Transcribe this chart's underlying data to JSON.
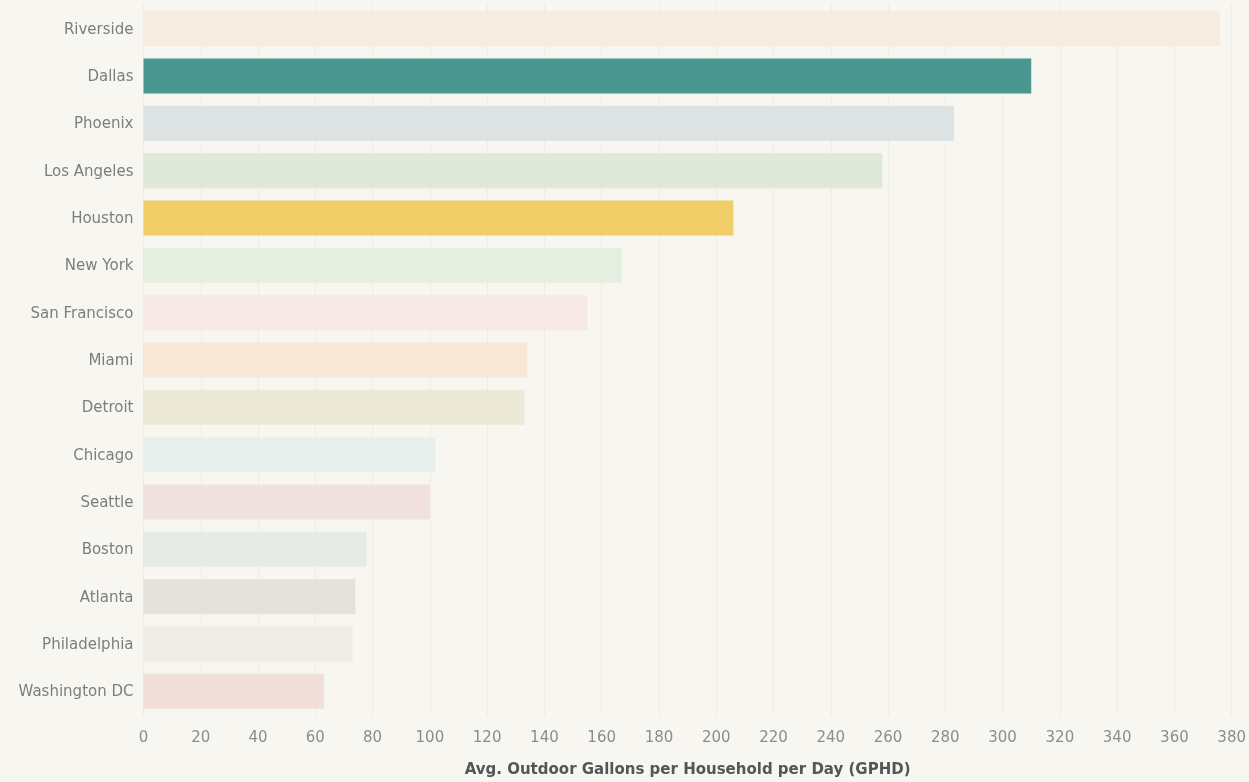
{
  "chart_data": {
    "type": "bar",
    "orientation": "horizontal",
    "xlabel": "Avg. Outdoor Gallons per Household per Day (GPHD)",
    "categories": [
      "Riverside",
      "Dallas",
      "Phoenix",
      "Los Angeles",
      "Houston",
      "New York",
      "San Francisco",
      "Miami",
      "Detroit",
      "Chicago",
      "Seattle",
      "Boston",
      "Atlanta",
      "Philadelphia",
      "Washington DC"
    ],
    "values": [
      376,
      310,
      283,
      258,
      206,
      167,
      155,
      134,
      133,
      102,
      100,
      78,
      74,
      73,
      63
    ],
    "colors": [
      "#f6ede0",
      "#4a9690",
      "#dde3e2",
      "#dfe9d9",
      "#f0cd66",
      "#e4efdf",
      "#f5e8e5",
      "#f6e7d6",
      "#ece9d6",
      "#e7eeeb",
      "#f1e2e1",
      "#e6ece5",
      "#e3e2dd",
      "#edece5",
      "#f2dfda"
    ],
    "xlim": [
      0,
      380
    ],
    "xticks": [
      0,
      20,
      40,
      60,
      80,
      100,
      120,
      140,
      160,
      180,
      200,
      220,
      240,
      260,
      280,
      300,
      320,
      340,
      360,
      380
    ],
    "grid": "x"
  }
}
